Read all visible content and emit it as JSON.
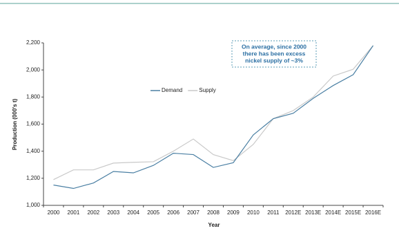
{
  "chart_data": {
    "type": "line",
    "xlabel": "Year",
    "ylabel": "Production (000's t)",
    "annotation": [
      "On average, since 2000",
      "there has been excess",
      "nickel supply of ~3%"
    ],
    "categories": [
      "2000",
      "2001",
      "2002",
      "2003",
      "2004",
      "2005",
      "2006",
      "2007",
      "2008",
      "2009",
      "2010",
      "2011",
      "2012E",
      "2013E",
      "2014E",
      "2015E",
      "2016E"
    ],
    "series": [
      {
        "name": "Demand",
        "color": "#4a7fa3",
        "values": [
          1150,
          1125,
          1165,
          1250,
          1240,
          1295,
          1385,
          1375,
          1280,
          1315,
          1520,
          1640,
          1680,
          1790,
          1885,
          1965,
          2180
        ]
      },
      {
        "name": "Supply",
        "color": "#c9c9c9",
        "values": [
          1190,
          1262,
          1262,
          1312,
          1318,
          1322,
          1400,
          1490,
          1375,
          1330,
          1450,
          1640,
          1700,
          1800,
          1955,
          2005,
          2180
        ]
      }
    ],
    "ylim": [
      1000,
      2200
    ],
    "yticks": [
      {
        "value": 1000,
        "label": "1,000"
      },
      {
        "value": 1200,
        "label": "1,200"
      },
      {
        "value": 1400,
        "label": "1,400"
      },
      {
        "value": 1600,
        "label": "1,600"
      },
      {
        "value": 1800,
        "label": "1,800"
      },
      {
        "value": 2000,
        "label": "2,000"
      },
      {
        "value": 2200,
        "label": "2,200"
      }
    ],
    "legend": "center"
  }
}
